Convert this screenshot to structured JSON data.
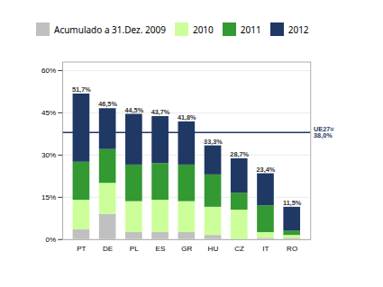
{
  "chart_data": {
    "type": "bar",
    "stacked": true,
    "categories": [
      "PT",
      "DE",
      "PL",
      "ES",
      "GR",
      "HU",
      "CZ",
      "IT",
      "RO"
    ],
    "series": [
      {
        "name": "Acumulado a 31.Dez. 2009",
        "color": "#c0c0c0",
        "values": [
          3.5,
          9.0,
          2.5,
          2.5,
          2.5,
          1.5,
          0.0,
          0.5,
          0.5
        ]
      },
      {
        "name": "2010",
        "color": "#ccff99",
        "values": [
          10.5,
          11.0,
          11.0,
          11.5,
          11.0,
          10.0,
          10.5,
          2.0,
          1.0
        ]
      },
      {
        "name": "2011",
        "color": "#339933",
        "values": [
          13.5,
          12.0,
          13.0,
          13.0,
          13.0,
          11.5,
          6.0,
          9.5,
          1.5
        ]
      },
      {
        "name": "2012",
        "color": "#1f3864",
        "values": [
          24.2,
          14.5,
          18.0,
          16.7,
          15.3,
          10.3,
          12.2,
          11.4,
          8.5
        ]
      }
    ],
    "totals": [
      51.7,
      46.5,
      44.5,
      43.7,
      41.8,
      33.3,
      28.7,
      23.4,
      11.5
    ],
    "total_labels": [
      "51,7%",
      "46,5%",
      "44,5%",
      "43,7%",
      "41,8%",
      "33,3%",
      "28,7%",
      "23,4%",
      "11,5%"
    ],
    "reference_line": {
      "value": 38.0,
      "label": "UE27=\n38,0%",
      "color": "#1f3864"
    },
    "ylim": [
      0,
      63
    ],
    "yticks": [
      {
        "value": 0,
        "label": "0%"
      },
      {
        "value": 15,
        "label": "15%"
      },
      {
        "value": 30,
        "label": "30%"
      },
      {
        "value": 45,
        "label": "45%"
      },
      {
        "value": 60,
        "label": "60%"
      }
    ],
    "grid": true,
    "legend": "top"
  }
}
